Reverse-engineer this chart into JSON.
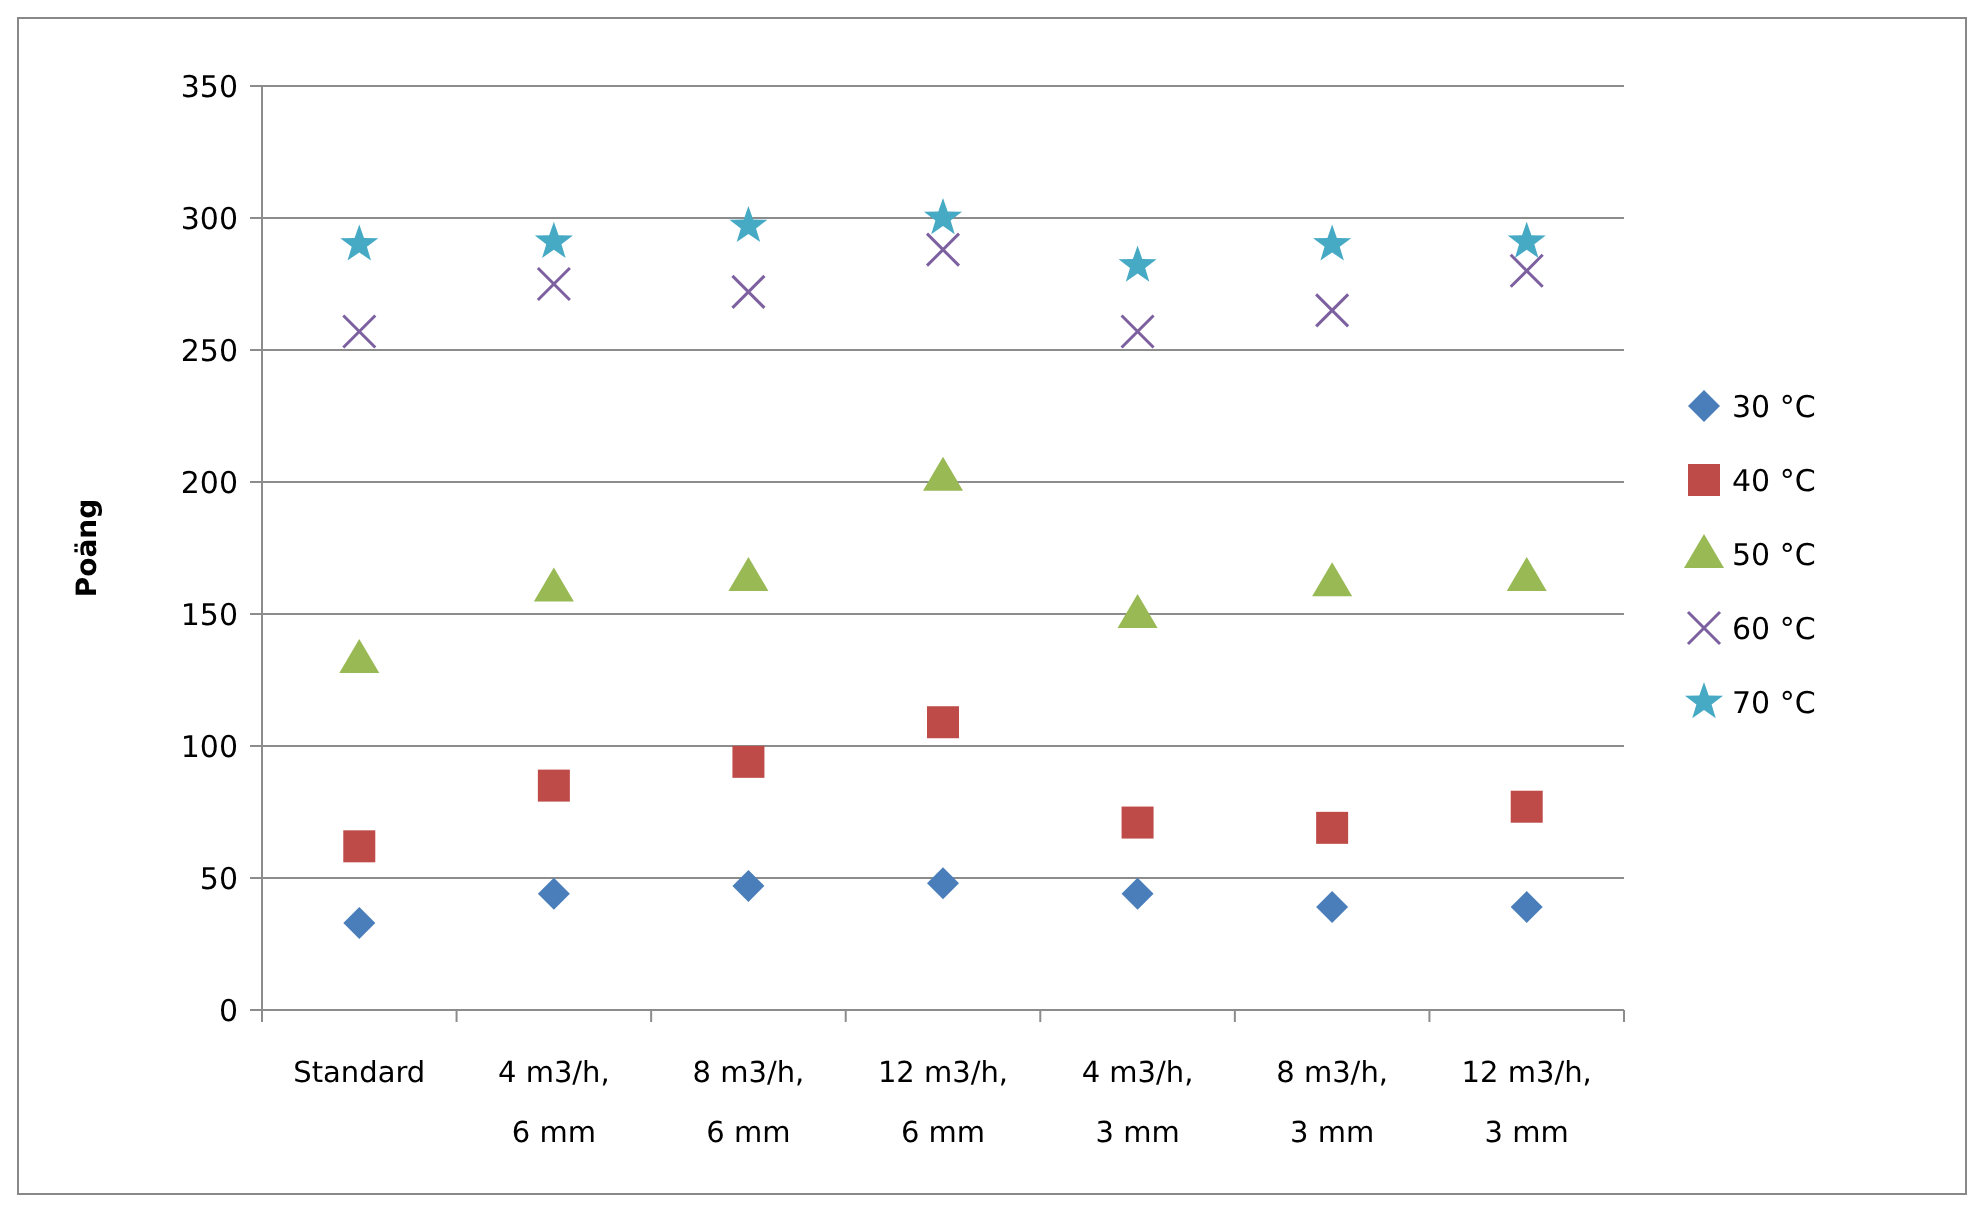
{
  "chart_data": {
    "type": "scatter",
    "ylabel": "Poäng",
    "categories": [
      "Standard",
      "4 m3/h, 6 mm",
      "8 m3/h, 6 mm",
      "12 m3/h, 6 mm",
      "4 m3/h, 3 mm",
      "8 m3/h, 3 mm",
      "12 m3/h, 3 mm"
    ],
    "ylim": [
      0,
      350
    ],
    "yticks": [
      0,
      50,
      100,
      150,
      200,
      250,
      300,
      350
    ],
    "grid": "y",
    "legend": "right",
    "series": [
      {
        "name": "30 °C",
        "color": "#4a7ebb",
        "marker": "diamond",
        "values": [
          33,
          44,
          47,
          48,
          44,
          39,
          39
        ]
      },
      {
        "name": "40 °C",
        "color": "#be4b48",
        "marker": "square",
        "values": [
          62,
          85,
          94,
          109,
          71,
          69,
          77
        ]
      },
      {
        "name": "50 °C",
        "color": "#98b954",
        "marker": "triangle",
        "values": [
          133,
          160,
          164,
          202,
          150,
          162,
          164
        ]
      },
      {
        "name": "60 °C",
        "color": "#7d60a0",
        "marker": "cross",
        "values": [
          257,
          275,
          272,
          288,
          257,
          265,
          280
        ]
      },
      {
        "name": "70 °C",
        "color": "#46aac5",
        "marker": "star",
        "values": [
          290,
          291,
          297,
          300,
          282,
          290,
          291
        ]
      }
    ]
  }
}
